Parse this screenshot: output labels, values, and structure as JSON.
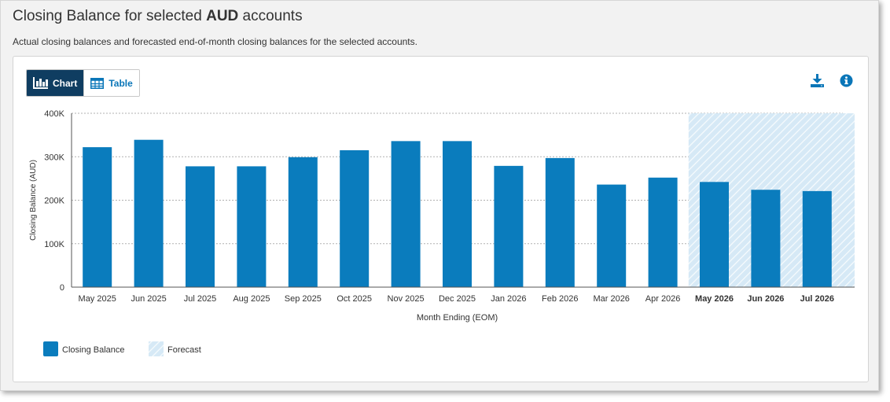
{
  "header": {
    "title_prefix": "Closing Balance for selected ",
    "title_currency": "AUD",
    "title_suffix": " accounts",
    "subtitle": "Actual closing balances and forecasted end-of-month closing balances for the selected accounts."
  },
  "view_toggle": {
    "chart_label": "Chart",
    "table_label": "Table",
    "active": "Chart"
  },
  "toolbar": {
    "download_icon": "download-icon",
    "info_icon": "info-icon"
  },
  "colors": {
    "bar": "#0a7cbd",
    "forecast_fill": "#d6e9f6",
    "toggle_active": "#0f3d61",
    "accent": "#0a76b8"
  },
  "chart_data": {
    "type": "bar",
    "title": "",
    "xlabel": "Month Ending (EOM)",
    "ylabel": "Closing Balance (AUD)",
    "ylim": [
      0,
      400000
    ],
    "yticks": [
      {
        "value": 0,
        "label": "0"
      },
      {
        "value": 100000,
        "label": "100K"
      },
      {
        "value": 200000,
        "label": "200K"
      },
      {
        "value": 300000,
        "label": "300K"
      },
      {
        "value": 400000,
        "label": "400K"
      }
    ],
    "grid": true,
    "legend_position": "bottom-left",
    "categories": [
      "May 2025",
      "Jun 2025",
      "Jul 2025",
      "Aug 2025",
      "Sep 2025",
      "Oct 2025",
      "Nov 2025",
      "Dec 2025",
      "Jan 2026",
      "Feb 2026",
      "Mar 2026",
      "Apr 2026",
      "May 2026",
      "Jun 2026",
      "Jul 2026"
    ],
    "series": [
      {
        "name": "Closing Balance",
        "values": [
          322000,
          339000,
          278000,
          278000,
          299000,
          315000,
          336000,
          336000,
          279000,
          297000,
          236000,
          252000,
          242000,
          224000,
          221000
        ]
      }
    ],
    "forecast": {
      "label": "Forecast",
      "categories": [
        "May 2026",
        "Jun 2026",
        "Jul 2026"
      ]
    }
  }
}
